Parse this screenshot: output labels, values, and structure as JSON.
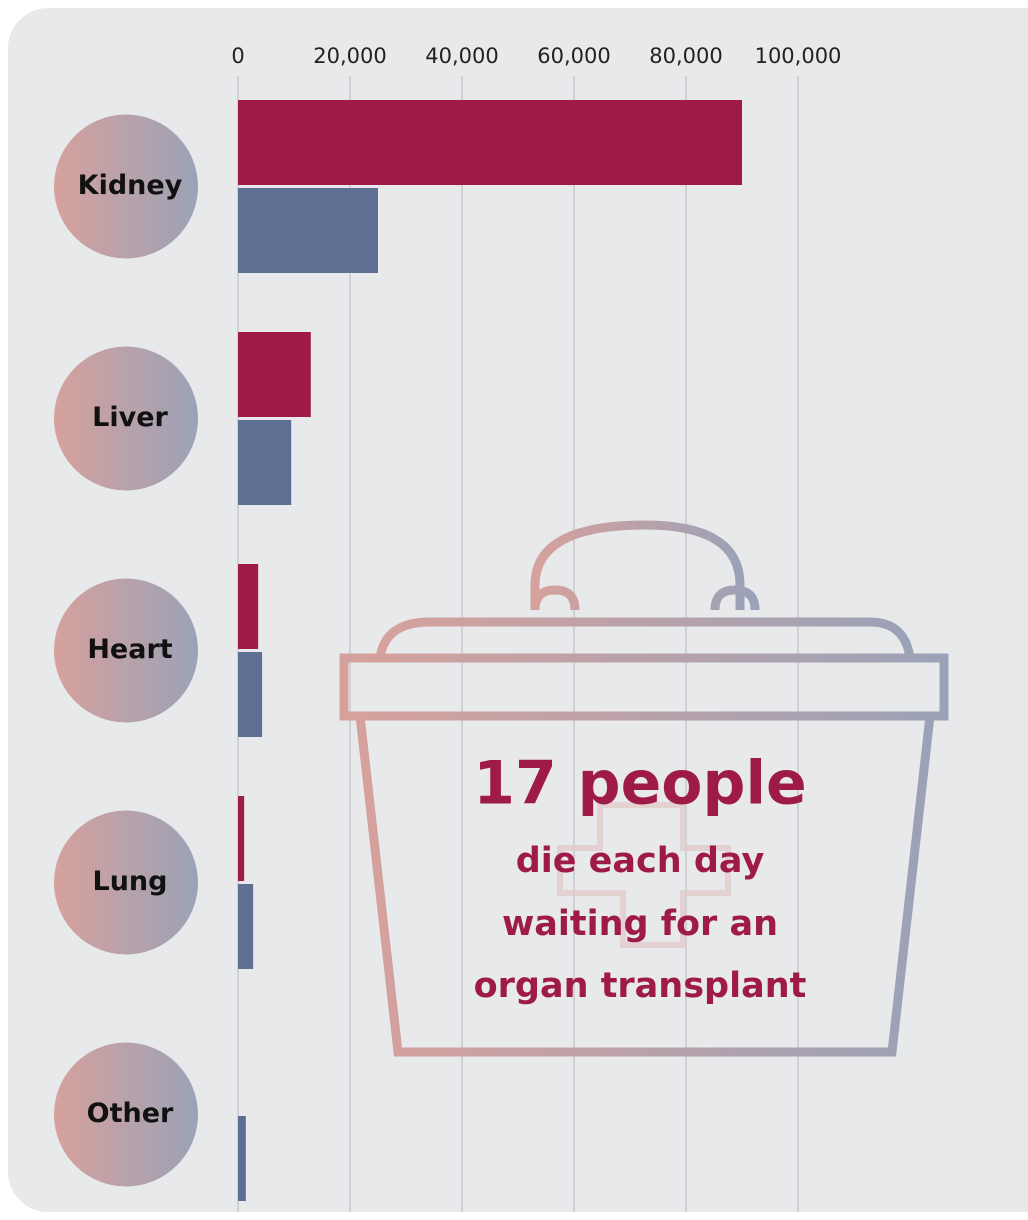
{
  "chart_data": {
    "type": "bar",
    "orientation": "horizontal",
    "categories": [
      "Kidney",
      "Liver",
      "Heart",
      "Lung",
      "Other"
    ],
    "series": [
      {
        "color": "#9e1a47",
        "values": [
          90000,
          13000,
          3600,
          1100,
          null
        ]
      },
      {
        "color": "#5f6f93",
        "values": [
          25000,
          9500,
          4300,
          2700,
          1400
        ]
      }
    ],
    "xlim": [
      0,
      100000
    ],
    "xticks": [
      0,
      {
        "value": 20000,
        "label": "20,000"
      },
      {
        "value": 40000,
        "label": "40,000"
      },
      {
        "value": 60000,
        "label": "60,000"
      },
      {
        "value": 80000,
        "label": "80,000"
      },
      {
        "value": 100000,
        "label": "100,000"
      }
    ],
    "grid": true,
    "annotation": [
      "17 people",
      "die each day",
      "waiting for an",
      "organ transplant"
    ]
  }
}
